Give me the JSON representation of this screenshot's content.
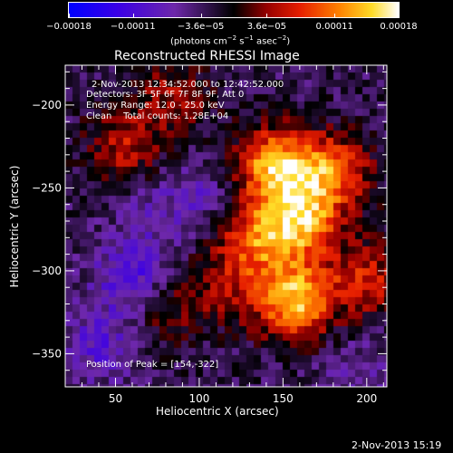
{
  "chart_data": {
    "type": "heatmap",
    "title": "Reconstructed RHESSI Image",
    "xlabel": "Heliocentric X (arcsec)",
    "ylabel": "Heliocentric Y (arcsec)",
    "xlim": [
      20,
      212
    ],
    "ylim": [
      -370,
      -176
    ],
    "x_ticks": [
      50,
      100,
      150,
      200
    ],
    "y_ticks": [
      -200,
      -250,
      -300,
      -350
    ],
    "x_tick_labels": [
      "50",
      "100",
      "150",
      "200"
    ],
    "y_tick_labels": [
      "−200",
      "−250",
      "−300",
      "−350"
    ],
    "colorbar": {
      "range": [
        -0.00018,
        0.00018
      ],
      "ticks": [
        -0.00018,
        -0.00011,
        -3.6e-05,
        3.6e-05,
        0.00011,
        0.00018
      ],
      "tick_labels": [
        "−0.00018",
        "−0.00011",
        "−3.6e−05",
        "3.6e−05",
        "0.00011",
        "0.00018"
      ],
      "unit_label": "(photons cm",
      "unit_sup1": "−2",
      "unit_mid": " s",
      "unit_sup2": "−1",
      "unit_end": " asec",
      "unit_sup3": "−2",
      "unit_close": ")"
    },
    "annotations": {
      "time_range": "2-Nov-2013 12:34:52.000 to 12:42:52.000",
      "detectors": "Detectors: 3F 5F 6F 7F 8F 9F, Att 0",
      "energy": "Energy Range: 12.0 - 25.0 keV",
      "clean": "Clean    Total counts: 1.28E+04",
      "peak": "Position of Peak = [154,-322]"
    },
    "peak": [
      154,
      -322
    ],
    "hotspots": [
      {
        "x": 145,
        "y": -237,
        "amp": 0.00017
      },
      {
        "x": 160,
        "y": -270,
        "amp": 0.00016
      },
      {
        "x": 157,
        "y": -318,
        "amp": 0.00018
      },
      {
        "x": 180,
        "y": -240,
        "amp": 0.00013
      },
      {
        "x": 133,
        "y": -282,
        "amp": 0.00011
      },
      {
        "x": 200,
        "y": -305,
        "amp": 9e-05
      },
      {
        "x": 55,
        "y": -225,
        "amp": 8e-05
      },
      {
        "x": 85,
        "y": -195,
        "amp": 7e-05
      },
      {
        "x": 113,
        "y": -310,
        "amp": 6e-05
      },
      {
        "x": 78,
        "y": -325,
        "amp": 5e-05
      },
      {
        "x": 40,
        "y": -345,
        "amp": -6e-05
      },
      {
        "x": 60,
        "y": -305,
        "amp": -8e-05
      },
      {
        "x": 100,
        "y": -255,
        "amp": -4e-05
      },
      {
        "x": 70,
        "y": -265,
        "amp": -3e-05
      },
      {
        "x": 195,
        "y": -360,
        "amp": -3e-05
      }
    ]
  },
  "footer": {
    "timestamp": "2-Nov-2013 15:19"
  }
}
